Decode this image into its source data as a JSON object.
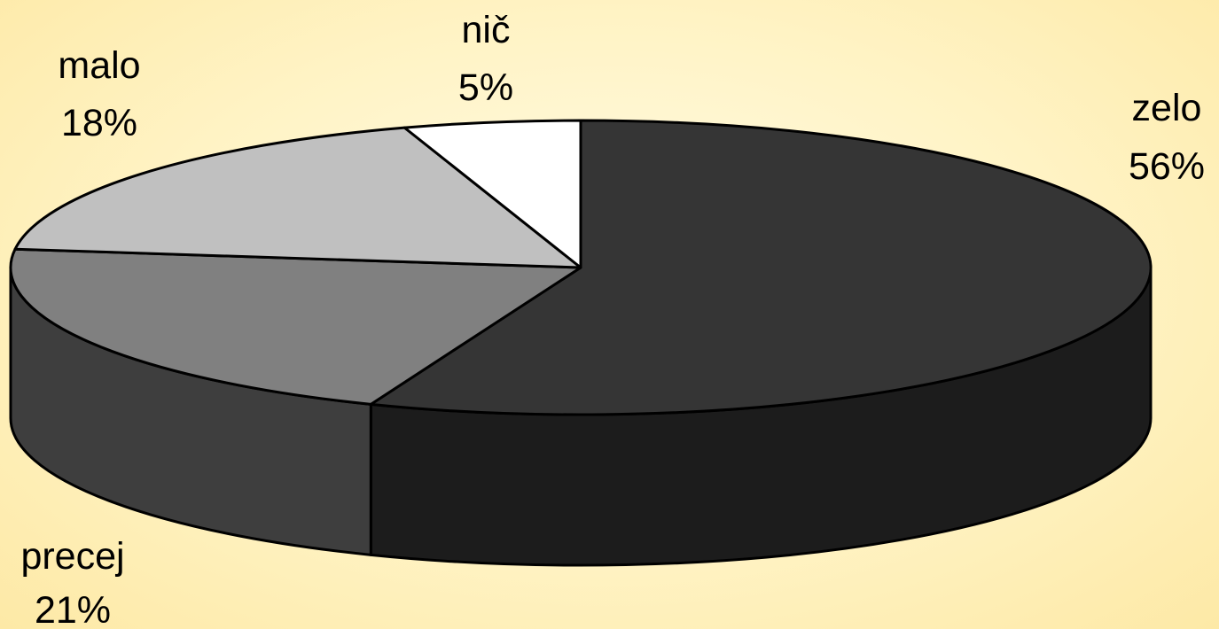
{
  "chart_data": {
    "type": "pie",
    "style": "3d",
    "title": "",
    "slices": [
      {
        "label": "zelo",
        "value": 56,
        "value_label": "56%",
        "top_color": "#353535",
        "side_color": "#1c1c1c"
      },
      {
        "label": "precej",
        "value": 21,
        "value_label": "21%",
        "top_color": "#808080",
        "side_color": "#3e3e3e"
      },
      {
        "label": "malo",
        "value": 18,
        "value_label": "18%",
        "top_color": "#c0c0c0",
        "side_color": "#8a8a8a"
      },
      {
        "label": "nič",
        "value": 5,
        "value_label": "5%",
        "top_color": "#ffffff",
        "side_color": "#cccccc"
      }
    ],
    "legend": "none"
  }
}
